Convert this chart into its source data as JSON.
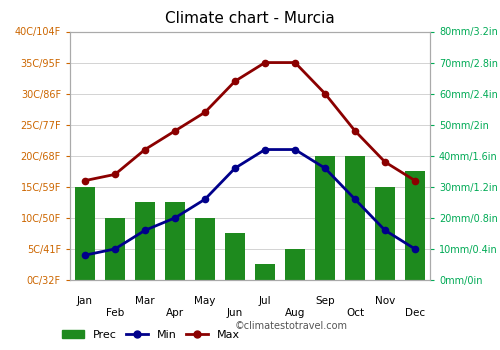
{
  "title": "Climate chart - Murcia",
  "months_all": [
    "Jan",
    "Feb",
    "Mar",
    "Apr",
    "May",
    "Jun",
    "Jul",
    "Aug",
    "Sep",
    "Oct",
    "Nov",
    "Dec"
  ],
  "months_odd": [
    "Jan",
    "Mar",
    "May",
    "Jul",
    "Sep",
    "Nov"
  ],
  "months_even": [
    "Feb",
    "Apr",
    "Jun",
    "Aug",
    "Oct",
    "Dec"
  ],
  "prec_mm": [
    30,
    20,
    25,
    25,
    20,
    15,
    5,
    10,
    40,
    40,
    30,
    35
  ],
  "temp_min": [
    4,
    5,
    8,
    10,
    13,
    18,
    21,
    21,
    18,
    13,
    8,
    5
  ],
  "temp_max": [
    16,
    17,
    21,
    24,
    27,
    32,
    35,
    35,
    30,
    24,
    19,
    16
  ],
  "bar_color": "#1e8a1e",
  "min_color": "#00008b",
  "max_color": "#8b0000",
  "title_color": "#000000",
  "left_axis_color": "#cc6600",
  "right_axis_color": "#00aa55",
  "grid_color": "#cccccc",
  "background_color": "#ffffff",
  "temp_ylim": [
    0,
    40
  ],
  "temp_yticks": [
    0,
    5,
    10,
    15,
    20,
    25,
    30,
    35,
    40
  ],
  "temp_ylabels": [
    "0C/32F",
    "5C/41F",
    "10C/50F",
    "15C/59F",
    "20C/68F",
    "25C/77F",
    "30C/86F",
    "35C/95F",
    "40C/104F"
  ],
  "prec_ylim": [
    0,
    80
  ],
  "prec_yticks": [
    0,
    10,
    20,
    30,
    40,
    50,
    60,
    70,
    80
  ],
  "prec_ylabels": [
    "0mm/0in",
    "10mm/0.4in",
    "20mm/0.8in",
    "30mm/1.2in",
    "40mm/1.6in",
    "50mm/2in",
    "60mm/2.4in",
    "70mm/2.8in",
    "80mm/3.2in"
  ],
  "watermark": "©climatestotravel.com",
  "legend_items": [
    "Prec",
    "Min",
    "Max"
  ]
}
